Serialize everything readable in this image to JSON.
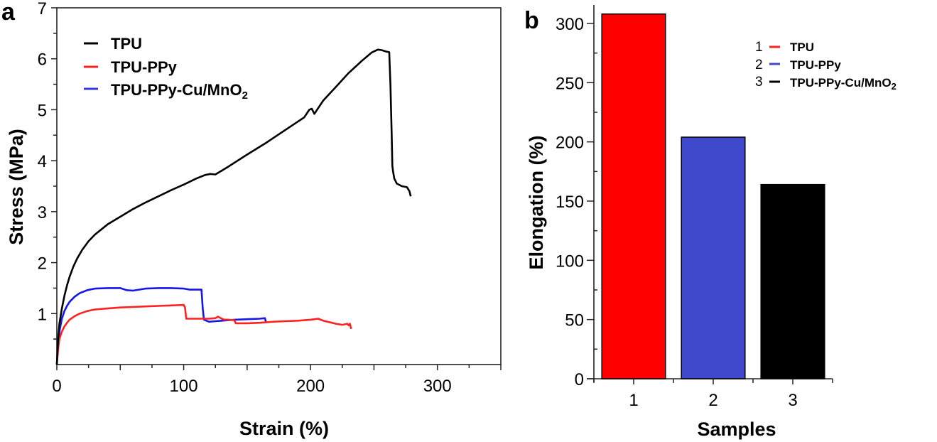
{
  "chart_data": [
    {
      "panel": "a",
      "type": "line",
      "title": "",
      "xlabel": "Strain (%)",
      "ylabel": "Stress (MPa)",
      "xlim": [
        0,
        350
      ],
      "ylim": [
        0,
        7
      ],
      "xticks": [
        0,
        100,
        200,
        300
      ],
      "xtick_labels": [
        "0",
        "100",
        "200",
        "300"
      ],
      "x_minor_step": 25,
      "yticks": [
        1,
        2,
        3,
        4,
        5,
        6,
        7
      ],
      "ytick_labels": [
        "1",
        "2",
        "3",
        "4",
        "5",
        "6",
        "7"
      ],
      "y_minor_step": 0.5,
      "grid": false,
      "legend_position": "top-left",
      "series": [
        {
          "name": "TPU",
          "color": "#000000",
          "x": [
            0,
            1,
            2,
            4,
            6,
            8,
            10,
            13,
            16,
            20,
            25,
            30,
            40,
            50,
            60,
            70,
            80,
            90,
            100,
            110,
            117,
            121,
            125,
            135,
            150,
            165,
            180,
            195,
            199,
            201,
            203,
            210,
            220,
            230,
            240,
            248,
            253,
            256,
            260,
            262,
            263,
            264,
            264.5,
            265,
            266,
            268,
            272,
            276,
            278,
            279
          ],
          "y": [
            0,
            0.5,
            0.8,
            1.1,
            1.35,
            1.55,
            1.72,
            1.92,
            2.08,
            2.25,
            2.42,
            2.55,
            2.75,
            2.9,
            3.05,
            3.18,
            3.3,
            3.42,
            3.53,
            3.65,
            3.72,
            3.74,
            3.73,
            3.88,
            4.12,
            4.35,
            4.6,
            4.85,
            5.0,
            5.02,
            4.92,
            5.18,
            5.45,
            5.72,
            5.95,
            6.12,
            6.18,
            6.17,
            6.14,
            6.13,
            5.5,
            4.5,
            3.9,
            3.8,
            3.65,
            3.55,
            3.5,
            3.48,
            3.4,
            3.3
          ]
        },
        {
          "name": "TPU-PPy",
          "color": "#ff2020",
          "x": [
            0,
            1,
            2,
            4,
            6,
            8,
            10,
            14,
            18,
            24,
            30,
            40,
            50,
            60,
            70,
            80,
            90,
            100,
            101,
            102,
            110,
            120,
            125,
            127,
            130,
            132,
            135,
            140,
            141,
            150,
            160,
            170,
            180,
            190,
            200,
            206,
            210,
            220,
            225,
            229,
            230,
            231,
            232
          ],
          "y": [
            0,
            0.3,
            0.5,
            0.65,
            0.75,
            0.82,
            0.88,
            0.95,
            1.0,
            1.05,
            1.08,
            1.1,
            1.12,
            1.13,
            1.14,
            1.15,
            1.16,
            1.17,
            1.12,
            0.9,
            0.9,
            0.9,
            0.91,
            0.94,
            0.9,
            0.88,
            0.88,
            0.87,
            0.81,
            0.81,
            0.82,
            0.84,
            0.85,
            0.86,
            0.88,
            0.9,
            0.86,
            0.8,
            0.78,
            0.8,
            0.77,
            0.8,
            0.7
          ]
        },
        {
          "name": "TPU-PPy-Cu/MnO2",
          "color": "#1515ee",
          "x": [
            0,
            1,
            2,
            4,
            6,
            8,
            10,
            14,
            18,
            24,
            30,
            40,
            50,
            55,
            60,
            70,
            80,
            90,
            100,
            105,
            114,
            115,
            116,
            118,
            120,
            125,
            130,
            140,
            150,
            160,
            164,
            165
          ],
          "y": [
            0,
            0.4,
            0.65,
            0.9,
            1.05,
            1.15,
            1.23,
            1.33,
            1.4,
            1.46,
            1.49,
            1.5,
            1.5,
            1.46,
            1.45,
            1.49,
            1.5,
            1.5,
            1.49,
            1.47,
            1.47,
            1.1,
            0.88,
            0.86,
            0.84,
            0.85,
            0.86,
            0.88,
            0.89,
            0.9,
            0.91,
            0.82
          ]
        }
      ]
    },
    {
      "panel": "b",
      "type": "bar",
      "title": "",
      "xlabel": "Samples",
      "ylabel": "Elongation (%)",
      "categories": [
        "1",
        "2",
        "3"
      ],
      "values": [
        308,
        204,
        164
      ],
      "colors": [
        "#ff0000",
        "#4049cc",
        "#000000"
      ],
      "ylim": [
        0,
        315
      ],
      "yticks": [
        0,
        50,
        100,
        150,
        200,
        250,
        300
      ],
      "ytick_labels": [
        "0",
        "50",
        "100",
        "150",
        "200",
        "250",
        "300"
      ],
      "y_minor_step": 25,
      "grid": false,
      "legend_position": "top-right",
      "legend": [
        {
          "number": "1",
          "label": "TPU",
          "color": "#ff2020"
        },
        {
          "number": "2",
          "label": "TPU-PPy",
          "color": "#4049cc"
        },
        {
          "number": "3",
          "label": "TPU-PPy-Cu/MnO",
          "subscript": "2",
          "color": "#000000"
        }
      ]
    }
  ],
  "panels": {
    "a": {
      "label": "a",
      "legend": [
        {
          "label": "TPU",
          "color": "#000000"
        },
        {
          "label": "TPU-PPy",
          "color": "#ff2020"
        },
        {
          "label": "TPU-PPy-Cu/MnO",
          "subscript": "2",
          "color": "#3a3ad8"
        }
      ]
    },
    "b": {
      "label": "b"
    }
  }
}
